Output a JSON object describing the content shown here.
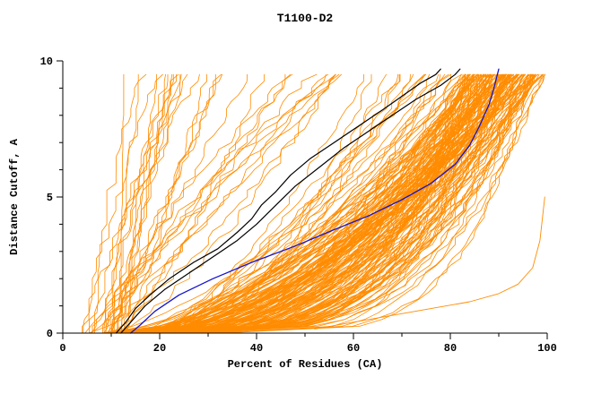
{
  "figure": {
    "background": "#ffffff"
  },
  "chart_data": {
    "type": "line",
    "title": "T1100-D2",
    "xlabel": "Percent of Residues (CA)",
    "ylabel": "Distance Cutoff, A",
    "xlim": [
      0,
      100
    ],
    "ylim": [
      0,
      10
    ],
    "x_major_ticks": [
      0,
      20,
      40,
      60,
      80,
      100
    ],
    "x_minor_step": 10,
    "y_major_ticks": [
      0,
      5,
      10
    ],
    "y_minor_step": 1,
    "grid": false,
    "legend": "none",
    "axis_style": "left-and-bottom-only",
    "colors": {
      "ensemble": "#ff8c00",
      "highlight_black": "#000000",
      "highlight_blue": "#1414cc"
    },
    "curve_top_y": 9.7,
    "band_extent_by_cutoff": [
      [
        0,
        8,
        35
      ],
      [
        1,
        12,
        72
      ],
      [
        2,
        15,
        80
      ],
      [
        3,
        18,
        85
      ],
      [
        4,
        22,
        88
      ],
      [
        5,
        28,
        90
      ],
      [
        6,
        35,
        91
      ],
      [
        7,
        44,
        92
      ],
      [
        8,
        52,
        94
      ],
      [
        9,
        58,
        96
      ],
      [
        9.7,
        60,
        100
      ]
    ],
    "ensemble": {
      "seed": 7,
      "y_top": 9.7,
      "y_step": 0.25,
      "color": "#ff8c00",
      "stroke_width": 0.8,
      "groups": [
        {
          "name": "main-band",
          "count": 155,
          "x0_range": [
            8,
            33
          ],
          "xtop_range": [
            83,
            100
          ],
          "shape_exp_range": [
            0.22,
            0.7
          ],
          "jitter": 1.4
        },
        {
          "name": "mid-cluster",
          "count": 20,
          "x0_range": [
            10,
            25
          ],
          "xtop_range": [
            58,
            84
          ],
          "shape_exp_range": [
            0.35,
            0.9
          ],
          "jitter": 1.8
        },
        {
          "name": "left-outliers",
          "count": 32,
          "x0_range": [
            4,
            13
          ],
          "xtop_range": [
            11,
            58
          ],
          "shape_exp_range": [
            0.6,
            1.5
          ],
          "jitter": 2.2
        }
      ]
    },
    "stragglers": [
      {
        "name": "straggler-low-right",
        "color": "#ff8c00",
        "width": 0.9,
        "points": [
          [
            52,
            0.15
          ],
          [
            60,
            0.4
          ],
          [
            68,
            0.65
          ],
          [
            76,
            0.9
          ],
          [
            84,
            1.15
          ],
          [
            90,
            1.45
          ],
          [
            94,
            1.8
          ],
          [
            97,
            2.4
          ],
          [
            98.5,
            3.4
          ],
          [
            99.5,
            5.0
          ]
        ]
      }
    ],
    "highlights": [
      {
        "name": "model-highlight-black-1",
        "color": "#000000",
        "width": 1.2,
        "points": [
          [
            11,
            0
          ],
          [
            13,
            0.4
          ],
          [
            15,
            0.9
          ],
          [
            18,
            1.4
          ],
          [
            22,
            2.0
          ],
          [
            27,
            2.6
          ],
          [
            32,
            3.1
          ],
          [
            36,
            3.7
          ],
          [
            39,
            4.2
          ],
          [
            41,
            4.7
          ],
          [
            44,
            5.2
          ],
          [
            47,
            5.8
          ],
          [
            51,
            6.4
          ],
          [
            56,
            7.0
          ],
          [
            61,
            7.6
          ],
          [
            66,
            8.2
          ],
          [
            70,
            8.7
          ],
          [
            74,
            9.2
          ],
          [
            77,
            9.5
          ],
          [
            78,
            9.7
          ]
        ]
      },
      {
        "name": "model-highlight-black-2",
        "color": "#000000",
        "width": 1.2,
        "points": [
          [
            12,
            0
          ],
          [
            14,
            0.4
          ],
          [
            17,
            1.0
          ],
          [
            21,
            1.6
          ],
          [
            26,
            2.2
          ],
          [
            31,
            2.8
          ],
          [
            36,
            3.4
          ],
          [
            40,
            4.0
          ],
          [
            44,
            4.7
          ],
          [
            48,
            5.4
          ],
          [
            53,
            6.1
          ],
          [
            58,
            6.8
          ],
          [
            63,
            7.4
          ],
          [
            68,
            8.0
          ],
          [
            73,
            8.6
          ],
          [
            78,
            9.1
          ],
          [
            81,
            9.5
          ],
          [
            82,
            9.7
          ]
        ]
      },
      {
        "name": "model-highlight-blue",
        "color": "#1414cc",
        "width": 1.3,
        "points": [
          [
            14,
            0
          ],
          [
            16,
            0.3
          ],
          [
            19,
            0.8
          ],
          [
            24,
            1.4
          ],
          [
            31,
            2.0
          ],
          [
            39,
            2.6
          ],
          [
            48,
            3.2
          ],
          [
            56,
            3.8
          ],
          [
            63,
            4.3
          ],
          [
            70,
            4.9
          ],
          [
            76,
            5.5
          ],
          [
            81,
            6.2
          ],
          [
            84,
            6.9
          ],
          [
            86,
            7.6
          ],
          [
            88,
            8.4
          ],
          [
            89,
            9.0
          ],
          [
            90,
            9.7
          ]
        ]
      }
    ]
  }
}
